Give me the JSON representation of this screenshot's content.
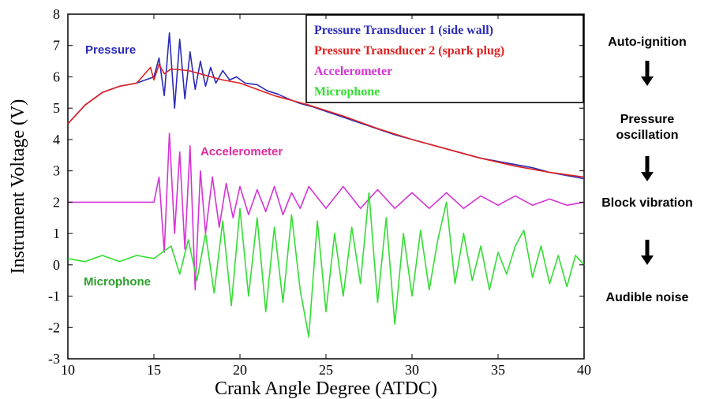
{
  "chart_data": {
    "type": "line",
    "xlabel": "Crank Angle Degree (ATDC)",
    "ylabel": "Instrument Voltage (V)",
    "xlim": [
      10,
      40
    ],
    "ylim": [
      -3,
      8
    ],
    "xticks": [
      "10",
      "15",
      "20",
      "25",
      "30",
      "35",
      "40"
    ],
    "yticks": [
      "-3",
      "-2",
      "-1",
      "0",
      "1",
      "2",
      "3",
      "4",
      "5",
      "6",
      "7",
      "8"
    ],
    "grid": false,
    "legend_position": "top-right",
    "series": [
      {
        "name": "Pressure Transducer 1 (side wall)",
        "color": "#2b2bb8",
        "x": [
          10,
          11,
          12,
          13,
          14,
          15,
          15.3,
          15.6,
          15.9,
          16.2,
          16.5,
          16.8,
          17.1,
          17.4,
          17.7,
          18,
          18.3,
          18.6,
          19,
          19.4,
          19.8,
          20.3,
          21,
          21.6,
          22.2,
          22.8,
          23.5,
          24.2,
          25,
          25.8,
          26.6,
          27.4,
          28.2,
          29,
          30,
          31,
          32,
          33,
          34,
          35,
          36,
          37,
          38,
          39,
          40
        ],
        "y": [
          4.5,
          5.1,
          5.5,
          5.7,
          5.8,
          6.0,
          6.6,
          5.4,
          7.4,
          5.0,
          7.2,
          5.3,
          6.8,
          5.6,
          6.5,
          5.7,
          6.3,
          5.8,
          6.2,
          5.9,
          6.0,
          5.8,
          5.75,
          5.55,
          5.45,
          5.3,
          5.15,
          5.05,
          4.9,
          4.75,
          4.6,
          4.45,
          4.3,
          4.15,
          4.0,
          3.85,
          3.7,
          3.55,
          3.4,
          3.3,
          3.2,
          3.1,
          2.95,
          2.85,
          2.75
        ]
      },
      {
        "name": "Pressure Transducer 2 (spark plug)",
        "color": "#e02020",
        "x": [
          10,
          11,
          12,
          13,
          14,
          14.8,
          15,
          15.3,
          15.6,
          16,
          17,
          18,
          19,
          20,
          22,
          24,
          26,
          28,
          30,
          32,
          34,
          36,
          38,
          40
        ],
        "y": [
          4.5,
          5.1,
          5.5,
          5.7,
          5.8,
          6.3,
          5.9,
          6.4,
          6.1,
          6.25,
          6.2,
          6.05,
          5.9,
          5.8,
          5.4,
          5.1,
          4.75,
          4.35,
          4.0,
          3.7,
          3.4,
          3.15,
          2.95,
          2.8
        ]
      },
      {
        "name": "Accelerometer",
        "color": "#d633d6",
        "x": [
          10,
          12,
          14,
          15.0,
          15.3,
          15.6,
          15.9,
          16.2,
          16.5,
          16.8,
          17.1,
          17.4,
          17.7,
          18.0,
          18.4,
          18.8,
          19.2,
          19.6,
          20.0,
          20.5,
          21.0,
          21.5,
          22.0,
          22.5,
          23.0,
          23.5,
          24.0,
          25,
          26,
          27,
          28,
          29,
          30,
          31,
          32,
          33,
          34,
          35,
          36,
          37,
          38,
          39,
          40
        ],
        "y": [
          2.0,
          2.0,
          2.0,
          2.0,
          2.8,
          0.4,
          4.2,
          1.0,
          3.6,
          0.5,
          3.8,
          -0.8,
          3.0,
          1.0,
          2.8,
          1.2,
          2.6,
          1.5,
          2.5,
          1.6,
          2.4,
          1.7,
          2.5,
          1.6,
          2.3,
          1.8,
          2.5,
          1.8,
          2.5,
          1.8,
          2.4,
          1.8,
          2.3,
          1.8,
          2.3,
          1.8,
          2.2,
          1.9,
          2.2,
          1.9,
          2.1,
          1.9,
          2.0
        ]
      },
      {
        "name": "Microphone",
        "color": "#33dd33",
        "x": [
          10,
          11,
          12,
          13,
          14,
          15,
          15.5,
          16,
          16.5,
          17,
          17.5,
          18,
          18.5,
          19,
          19.5,
          20,
          20.5,
          21,
          21.5,
          22,
          22.5,
          23,
          23.5,
          24,
          24.5,
          25,
          25.5,
          26,
          26.5,
          27,
          27.5,
          28,
          28.5,
          29,
          29.5,
          30,
          30.5,
          31,
          31.5,
          32,
          32.5,
          33,
          33.5,
          34,
          34.5,
          35,
          35.5,
          36,
          36.5,
          37,
          37.5,
          38,
          38.5,
          39,
          39.5,
          40
        ],
        "y": [
          0.2,
          0.1,
          0.3,
          0.1,
          0.3,
          0.2,
          0.4,
          0.6,
          -0.3,
          0.8,
          -0.5,
          1.0,
          -0.9,
          1.4,
          -1.3,
          1.8,
          -1.0,
          1.5,
          -1.5,
          1.2,
          -1.2,
          1.6,
          -0.8,
          -2.3,
          1.4,
          -1.5,
          1.0,
          -1.0,
          1.2,
          -0.6,
          2.3,
          -1.2,
          1.5,
          -1.9,
          1.0,
          -1.0,
          1.1,
          -0.8,
          0.8,
          2.0,
          -0.6,
          1.0,
          -0.5,
          0.6,
          -0.8,
          0.4,
          -0.3,
          0.6,
          1.1,
          -0.4,
          0.6,
          -0.6,
          0.3,
          -0.7,
          0.3,
          0.0
        ]
      }
    ],
    "annotations": [
      {
        "text": "Pressure",
        "color": "#2b2bb8"
      },
      {
        "text": "Accelerometer",
        "color": "#e02b9c"
      },
      {
        "text": "Microphone",
        "color": "#2ca02c"
      }
    ]
  },
  "flow": {
    "steps": [
      "Auto-ignition",
      "Pressure oscillation",
      "Block vibration",
      "Audible noise"
    ]
  }
}
